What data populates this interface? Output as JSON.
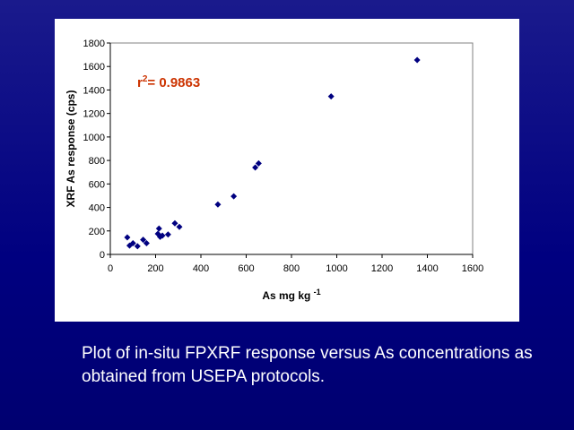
{
  "chart_data": {
    "type": "scatter",
    "xlabel": "As mg kg",
    "xlabel_superscript": "-1",
    "ylabel": "XRF As response (cps)",
    "xlim": [
      0,
      1600
    ],
    "ylim": [
      0,
      1800
    ],
    "xticks": [
      0,
      200,
      400,
      600,
      800,
      1000,
      1200,
      1400,
      1600
    ],
    "yticks": [
      0,
      200,
      400,
      600,
      800,
      1000,
      1200,
      1400,
      1600,
      1800
    ],
    "grid": false,
    "marker": "diamond",
    "marker_color": "#000080",
    "annotation": {
      "prefix": "r",
      "superscript": "2",
      "text": "= 0.9863",
      "color": "#cc3300"
    },
    "points": [
      {
        "x": 75,
        "y": 145
      },
      {
        "x": 85,
        "y": 75
      },
      {
        "x": 100,
        "y": 95
      },
      {
        "x": 120,
        "y": 70
      },
      {
        "x": 145,
        "y": 125
      },
      {
        "x": 160,
        "y": 95
      },
      {
        "x": 210,
        "y": 175
      },
      {
        "x": 215,
        "y": 220
      },
      {
        "x": 220,
        "y": 150
      },
      {
        "x": 230,
        "y": 160
      },
      {
        "x": 255,
        "y": 170
      },
      {
        "x": 285,
        "y": 265
      },
      {
        "x": 305,
        "y": 235
      },
      {
        "x": 475,
        "y": 425
      },
      {
        "x": 545,
        "y": 495
      },
      {
        "x": 640,
        "y": 740
      },
      {
        "x": 655,
        "y": 775
      },
      {
        "x": 975,
        "y": 1345
      },
      {
        "x": 1355,
        "y": 1655
      }
    ]
  },
  "caption": "Plot of in-situ FPXRF response versus As concentrations as obtained from USEPA protocols."
}
